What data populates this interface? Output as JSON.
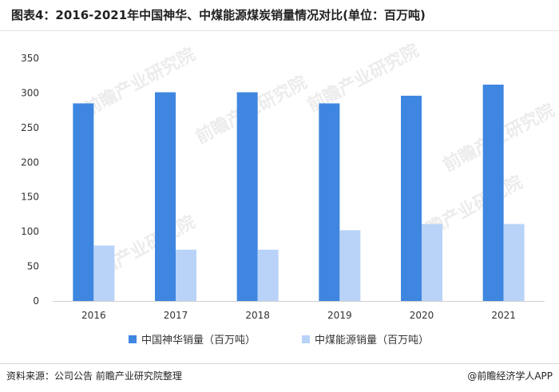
{
  "title": "图表4：2016-2021年中国神华、中煤能源煤炭销量情况对比(单位：百万吨)",
  "watermark_text": "前瞻产业研究院",
  "footer": {
    "source": "资料来源：公司公告 前瞻产业研究院整理",
    "brand": "@前瞻经济学人APP"
  },
  "chart_data": {
    "type": "bar",
    "title": "图表4：2016-2021年中国神华、中煤能源煤炭销量情况对比(单位：百万吨)",
    "categories": [
      "2016",
      "2017",
      "2018",
      "2019",
      "2020",
      "2021"
    ],
    "series": [
      {
        "name": "中国神华销量（百万吨）",
        "color": "#3f86e0",
        "values": [
          285,
          301,
          301,
          285,
          296,
          312
        ]
      },
      {
        "name": "中煤能源销量（百万吨）",
        "color": "#b8d3f7",
        "values": [
          80,
          74,
          74,
          102,
          111,
          111
        ]
      }
    ],
    "ylim": [
      0,
      350
    ],
    "yticks": [
      0,
      50,
      100,
      150,
      200,
      250,
      300,
      350
    ],
    "grid": false,
    "legend_position": "bottom"
  }
}
